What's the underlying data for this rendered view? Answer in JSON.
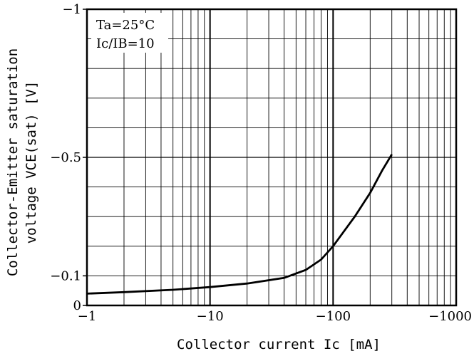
{
  "chart_data": {
    "type": "line",
    "title": "",
    "xlabel": "Collector current Ic [mA]",
    "ylabel_line1": "Collector-Emitter saturation",
    "ylabel_line2": "voltage VCE(sat) [V]",
    "x_scale": "log",
    "x_magnitude_range": [
      1,
      1000
    ],
    "xlim": [
      -1,
      -1000
    ],
    "ylim": [
      0,
      -1
    ],
    "grid": true,
    "x_ticks": [
      {
        "value": 1,
        "label": "−1"
      },
      {
        "value": 10,
        "label": "−10"
      },
      {
        "value": 100,
        "label": "−100"
      },
      {
        "value": 1000,
        "label": "−1000"
      }
    ],
    "y_ticks": [
      {
        "value": -1,
        "label": "−1"
      },
      {
        "value": -0.5,
        "label": "−0.5"
      },
      {
        "value": -0.1,
        "label": "−0.1"
      },
      {
        "value": 0,
        "label": "0"
      }
    ],
    "annotations": [
      "Ta=25°C",
      "Ic/IB=10"
    ],
    "series": [
      {
        "x": [
          -1,
          -2,
          -5,
          -10,
          -20,
          -40,
          -60,
          -80,
          -100,
          -150,
          -200,
          -250,
          -300
        ],
        "y": [
          -0.04,
          -0.045,
          -0.053,
          -0.062,
          -0.074,
          -0.093,
          -0.12,
          -0.155,
          -0.2,
          -0.3,
          -0.38,
          -0.455,
          -0.51
        ]
      }
    ]
  }
}
